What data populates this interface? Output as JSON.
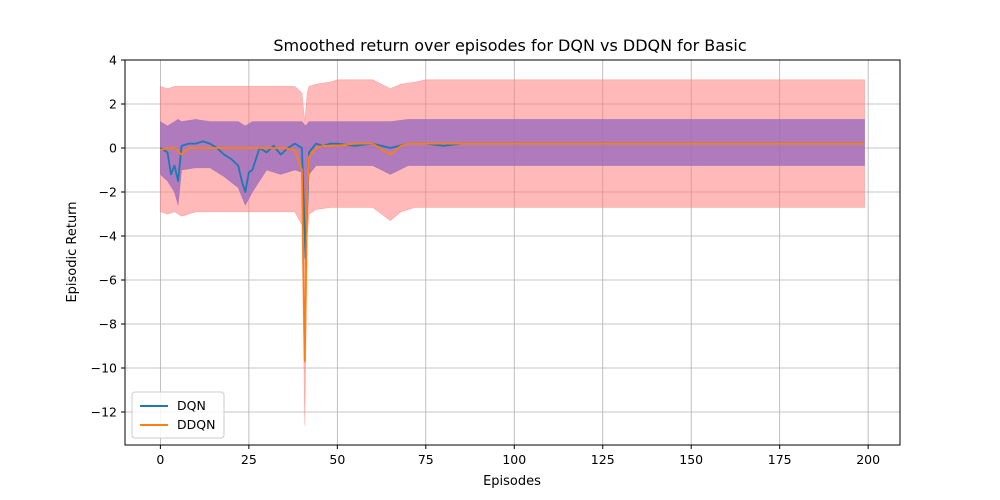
{
  "chart_data": {
    "type": "line",
    "title": "Smoothed return over episodes for DQN vs DDQN for Basic",
    "xlabel": "Episodes",
    "ylabel": "Episodic Return",
    "xlim": [
      -10,
      209
    ],
    "ylim": [
      -13.5,
      4
    ],
    "xticks": [
      0,
      25,
      50,
      75,
      100,
      125,
      150,
      175,
      200
    ],
    "yticks": [
      -12,
      -10,
      -8,
      -6,
      -4,
      -2,
      0,
      2,
      4
    ],
    "grid": true,
    "legend_position": "lower-left",
    "series": [
      {
        "name": "DQN",
        "color": "#1f77b4",
        "band_color": "#9467bd",
        "points": [
          [
            0,
            0
          ],
          [
            2,
            -0.2
          ],
          [
            3,
            -1.2
          ],
          [
            4,
            -0.8
          ],
          [
            5,
            -1.5
          ],
          [
            6,
            0.1
          ],
          [
            8,
            0.2
          ],
          [
            10,
            0.2
          ],
          [
            12,
            0.3
          ],
          [
            14,
            0.2
          ],
          [
            16,
            0
          ],
          [
            18,
            -0.3
          ],
          [
            20,
            -0.5
          ],
          [
            22,
            -0.8
          ],
          [
            23,
            -1.5
          ],
          [
            24,
            -2.0
          ],
          [
            25,
            -1.1
          ],
          [
            26,
            -1.0
          ],
          [
            28,
            0
          ],
          [
            30,
            -0.2
          ],
          [
            32,
            0.1
          ],
          [
            34,
            -0.3
          ],
          [
            36,
            0
          ],
          [
            38,
            0.2
          ],
          [
            40,
            0
          ],
          [
            41,
            -5.0
          ],
          [
            42,
            -0.2
          ],
          [
            44,
            0.2
          ],
          [
            46,
            0.1
          ],
          [
            48,
            0.2
          ],
          [
            50,
            0.2
          ],
          [
            55,
            0.1
          ],
          [
            60,
            0.2
          ],
          [
            65,
            0
          ],
          [
            70,
            0.2
          ],
          [
            75,
            0.2
          ],
          [
            80,
            0.1
          ],
          [
            85,
            0.2
          ],
          [
            90,
            0.2
          ],
          [
            95,
            0.2
          ],
          [
            100,
            0.2
          ],
          [
            110,
            0.2
          ],
          [
            120,
            0.2
          ],
          [
            130,
            0.2
          ],
          [
            140,
            0.2
          ],
          [
            150,
            0.2
          ],
          [
            160,
            0.2
          ],
          [
            170,
            0.2
          ],
          [
            180,
            0.2
          ],
          [
            190,
            0.2
          ],
          [
            199,
            0.2
          ]
        ],
        "band": [
          [
            0,
            -1.2,
            1.2
          ],
          [
            2,
            -1.5,
            1.0
          ],
          [
            4,
            -2.0,
            1.2
          ],
          [
            5,
            -2.6,
            1.3
          ],
          [
            6,
            -1.0,
            1.2
          ],
          [
            10,
            -0.9,
            1.3
          ],
          [
            14,
            -0.9,
            1.2
          ],
          [
            18,
            -1.3,
            1.2
          ],
          [
            22,
            -1.8,
            1.2
          ],
          [
            24,
            -2.6,
            1.0
          ],
          [
            26,
            -2.0,
            1.2
          ],
          [
            30,
            -1.0,
            1.2
          ],
          [
            34,
            -1.2,
            1.2
          ],
          [
            38,
            -1.0,
            1.2
          ],
          [
            40,
            -1.1,
            1.2
          ],
          [
            41,
            -5.5,
            1.0
          ],
          [
            42,
            -1.2,
            1.2
          ],
          [
            44,
            -0.8,
            1.2
          ],
          [
            50,
            -0.8,
            1.2
          ],
          [
            60,
            -0.8,
            1.2
          ],
          [
            65,
            -1.2,
            1.2
          ],
          [
            70,
            -0.8,
            1.3
          ],
          [
            80,
            -0.8,
            1.3
          ],
          [
            100,
            -0.8,
            1.3
          ],
          [
            120,
            -0.8,
            1.3
          ],
          [
            140,
            -0.8,
            1.3
          ],
          [
            160,
            -0.8,
            1.3
          ],
          [
            180,
            -0.8,
            1.3
          ],
          [
            199,
            -0.8,
            1.3
          ]
        ]
      },
      {
        "name": "DDQN",
        "color": "#ff7f0e",
        "band_color": "#ff8080",
        "points": [
          [
            0,
            -0.1
          ],
          [
            2,
            0
          ],
          [
            4,
            0
          ],
          [
            6,
            -0.3
          ],
          [
            8,
            0
          ],
          [
            10,
            0
          ],
          [
            15,
            0
          ],
          [
            20,
            0
          ],
          [
            25,
            0
          ],
          [
            30,
            0
          ],
          [
            35,
            0
          ],
          [
            38,
            -0.1
          ],
          [
            40,
            -1.0
          ],
          [
            40.8,
            -9.7
          ],
          [
            41.5,
            -2.0
          ],
          [
            42,
            -0.4
          ],
          [
            44,
            0
          ],
          [
            46,
            0.1
          ],
          [
            50,
            0.1
          ],
          [
            55,
            0.2
          ],
          [
            60,
            0.2
          ],
          [
            65,
            -0.3
          ],
          [
            68,
            0.1
          ],
          [
            70,
            0.2
          ],
          [
            75,
            0.2
          ],
          [
            80,
            0.2
          ],
          [
            90,
            0.2
          ],
          [
            100,
            0.2
          ],
          [
            110,
            0.2
          ],
          [
            120,
            0.2
          ],
          [
            130,
            0.2
          ],
          [
            140,
            0.2
          ],
          [
            150,
            0.2
          ],
          [
            160,
            0.2
          ],
          [
            170,
            0.2
          ],
          [
            180,
            0.2
          ],
          [
            190,
            0.2
          ],
          [
            199,
            0.2
          ]
        ],
        "band": [
          [
            0,
            -2.9,
            2.8
          ],
          [
            2,
            -3.0,
            2.7
          ],
          [
            4,
            -2.9,
            2.8
          ],
          [
            6,
            -3.1,
            2.8
          ],
          [
            10,
            -2.9,
            2.8
          ],
          [
            20,
            -2.9,
            2.8
          ],
          [
            30,
            -2.9,
            2.8
          ],
          [
            38,
            -2.9,
            2.8
          ],
          [
            40,
            -3.5,
            2.5
          ],
          [
            40.8,
            -12.6,
            1.2
          ],
          [
            41.5,
            -4.0,
            2.5
          ],
          [
            42,
            -3.0,
            2.8
          ],
          [
            44,
            -2.8,
            2.9
          ],
          [
            48,
            -2.7,
            3.0
          ],
          [
            50,
            -2.7,
            3.1
          ],
          [
            60,
            -2.7,
            3.1
          ],
          [
            65,
            -3.3,
            2.7
          ],
          [
            68,
            -2.9,
            2.9
          ],
          [
            72,
            -2.7,
            3.0
          ],
          [
            75,
            -2.7,
            3.1
          ],
          [
            100,
            -2.7,
            3.1
          ],
          [
            150,
            -2.7,
            3.1
          ],
          [
            199,
            -2.7,
            3.1
          ]
        ]
      }
    ]
  }
}
